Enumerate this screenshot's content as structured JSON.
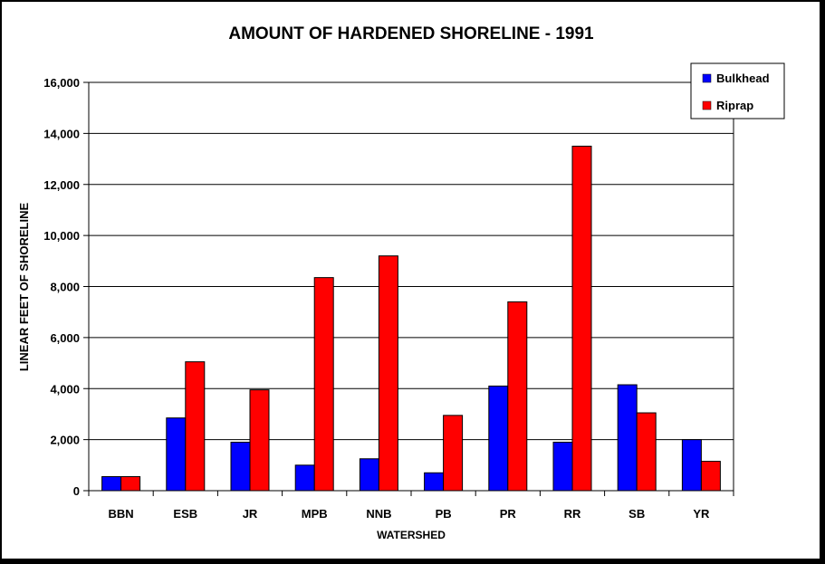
{
  "chart_data": {
    "type": "bar",
    "title": "AMOUNT OF HARDENED SHORELINE - 1991",
    "xlabel": "WATERSHED",
    "ylabel": "LINEAR FEET OF SHORELINE",
    "ylim": [
      0,
      16000
    ],
    "yticks": [
      "0",
      "2,000",
      "4,000",
      "6,000",
      "8,000",
      "10,000",
      "12,000",
      "14,000",
      "16,000"
    ],
    "ytick_values": [
      0,
      2000,
      4000,
      6000,
      8000,
      10000,
      12000,
      14000,
      16000
    ],
    "grid": true,
    "legend_position": "top-right",
    "categories": [
      "BBN",
      "ESB",
      "JR",
      "MPB",
      "NNB",
      "PB",
      "PR",
      "RR",
      "SB",
      "YR"
    ],
    "series": [
      {
        "name": "Bulkhead",
        "color": "#0000FF",
        "values": [
          550,
          2850,
          1900,
          1000,
          1250,
          700,
          4100,
          1900,
          4150,
          2000
        ]
      },
      {
        "name": "Riprap",
        "color": "#FF0000",
        "values": [
          550,
          5050,
          3950,
          8350,
          9200,
          2950,
          7400,
          13500,
          3050,
          1150
        ]
      }
    ]
  }
}
